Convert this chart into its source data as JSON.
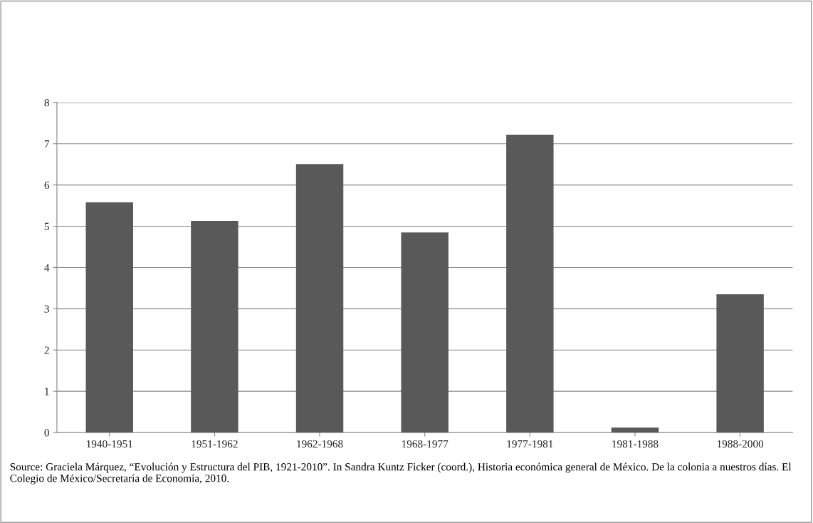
{
  "chart_data": {
    "type": "bar",
    "categories": [
      "1940-1951",
      "1951-1962",
      "1962-1968",
      "1968-1977",
      "1977-1981",
      "1981-1988",
      "1988-2000"
    ],
    "values": [
      5.58,
      5.13,
      6.51,
      4.85,
      7.22,
      0.12,
      3.35
    ],
    "color": "#595959",
    "ylim": [
      0,
      8
    ],
    "yticks": [
      0,
      1,
      2,
      3,
      4,
      5,
      6,
      7,
      8
    ],
    "grid": "y",
    "legend": false,
    "annotations": [
      "Source: Graciela Márquez, “Evolución y Estructura del PIB, 1921-2010”. In Sandra Kuntz Ficker (coord.), Historia económica general de México. De la colonia a nuestros días. El Colegio de México/Secretaría de Economía, 2010."
    ]
  }
}
